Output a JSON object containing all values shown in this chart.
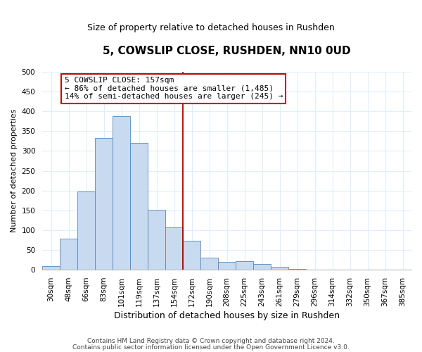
{
  "title": "5, COWSLIP CLOSE, RUSHDEN, NN10 0UD",
  "subtitle": "Size of property relative to detached houses in Rushden",
  "xlabel": "Distribution of detached houses by size in Rushden",
  "ylabel": "Number of detached properties",
  "bar_labels": [
    "30sqm",
    "48sqm",
    "66sqm",
    "83sqm",
    "101sqm",
    "119sqm",
    "137sqm",
    "154sqm",
    "172sqm",
    "190sqm",
    "208sqm",
    "225sqm",
    "243sqm",
    "261sqm",
    "279sqm",
    "296sqm",
    "314sqm",
    "332sqm",
    "350sqm",
    "367sqm",
    "385sqm"
  ],
  "bar_values": [
    10,
    78,
    198,
    332,
    388,
    320,
    152,
    107,
    73,
    30,
    20,
    22,
    15,
    7,
    2,
    1,
    0,
    0,
    0,
    0,
    1
  ],
  "bar_color": "#c8daf0",
  "bar_edge_color": "#5588bb",
  "vline_x": 8.0,
  "vline_color": "#aa0000",
  "annotation_title": "5 COWSLIP CLOSE: 157sqm",
  "annotation_line1": "← 86% of detached houses are smaller (1,485)",
  "annotation_line2": "14% of semi-detached houses are larger (245) →",
  "annotation_box_facecolor": "#ffffff",
  "annotation_box_edgecolor": "#cc0000",
  "ylim": [
    0,
    500
  ],
  "yticks": [
    0,
    50,
    100,
    150,
    200,
    250,
    300,
    350,
    400,
    450,
    500
  ],
  "footer1": "Contains HM Land Registry data © Crown copyright and database right 2024.",
  "footer2": "Contains public sector information licensed under the Open Government Licence v3.0.",
  "grid_color": "#ddeeff",
  "title_fontsize": 11,
  "subtitle_fontsize": 9,
  "ylabel_fontsize": 8,
  "xlabel_fontsize": 9,
  "tick_fontsize": 7.5,
  "footer_fontsize": 6.5
}
